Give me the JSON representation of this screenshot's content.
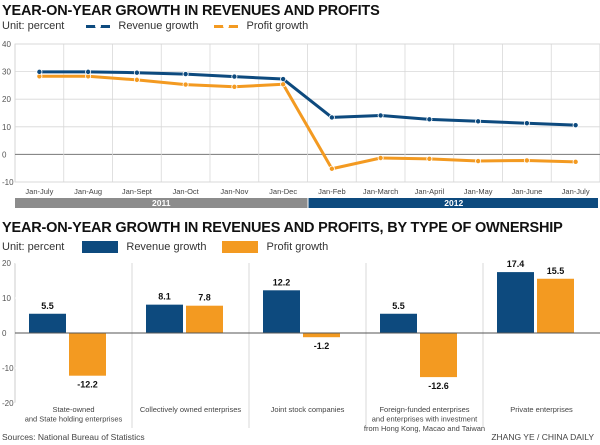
{
  "colors": {
    "revenue": "#0d4a7e",
    "profit": "#f39a21",
    "year2011": "#8c8c8c",
    "year2012": "#0d4a7e"
  },
  "top": {
    "title": "YEAR-ON-YEAR GROWTH IN REVENUES AND PROFITS",
    "unit": "Unit: percent",
    "legend": [
      "Revenue growth",
      "Profit growth"
    ],
    "years": [
      "2011",
      "2012"
    ]
  },
  "bottom": {
    "title": "YEAR-ON-YEAR GROWTH IN REVENUES AND PROFITS, BY TYPE OF OWNERSHIP",
    "unit": "Unit: percent",
    "legend": [
      "Revenue growth",
      "Profit growth"
    ]
  },
  "footer": {
    "source": "Sources: National Bureau of Statistics",
    "credit": "ZHANG YE / CHINA DAILY"
  },
  "chart_data": [
    {
      "type": "line",
      "title": "YEAR-ON-YEAR GROWTH IN REVENUES AND PROFITS",
      "ylabel": "Unit: percent",
      "ylim": [
        -10,
        40
      ],
      "yticks": [
        40,
        30,
        20,
        10,
        0,
        -10
      ],
      "grid": true,
      "legend": "top-left",
      "categories": [
        "Jan-July",
        "Jan-Aug",
        "Jan-Sept",
        "Jan-Oct",
        "Jan-Nov",
        "Jan-Dec",
        "Jan-Feb",
        "Jan-March",
        "Jan-April",
        "Jan-May",
        "Jan-June",
        "Jan-July"
      ],
      "series": [
        {
          "name": "Revenue growth",
          "values": [
            29.9,
            29.9,
            29.6,
            29.1,
            28.2,
            27.3,
            13.4,
            14.1,
            12.7,
            12.0,
            11.3,
            10.6
          ]
        },
        {
          "name": "Profit growth",
          "values": [
            28.3,
            28.3,
            27.0,
            25.3,
            24.5,
            25.4,
            -5.2,
            -1.3,
            -1.6,
            -2.4,
            -2.2,
            -2.7
          ]
        }
      ]
    },
    {
      "type": "bar",
      "title": "YEAR-ON-YEAR GROWTH IN REVENUES AND PROFITS, BY TYPE OF OWNERSHIP",
      "ylabel": "Unit: percent",
      "ylim": [
        -20,
        20
      ],
      "yticks": [
        20,
        10,
        0,
        -10,
        -20
      ],
      "legend": "top-left",
      "categories": [
        [
          "State-owned",
          "and State holding enterprises"
        ],
        [
          "Collectively owned enterprises"
        ],
        [
          "Joint stock companies"
        ],
        [
          "Foreign-funded enterprises",
          "and enterprises with investment",
          "from Hong Kong, Macao and Taiwan"
        ],
        [
          "Private enterprises"
        ]
      ],
      "series": [
        {
          "name": "Revenue growth",
          "values": [
            5.5,
            8.1,
            12.2,
            5.5,
            17.4
          ],
          "labels": [
            "5.5",
            "8.1",
            "12.2",
            "5.5",
            "17.4"
          ]
        },
        {
          "name": "Profit growth",
          "values": [
            -12.2,
            7.8,
            -1.2,
            -12.6,
            15.5
          ],
          "labels": [
            "-12.2",
            "7.8",
            "-1.2",
            "-12.6",
            "15.5"
          ]
        }
      ]
    }
  ]
}
